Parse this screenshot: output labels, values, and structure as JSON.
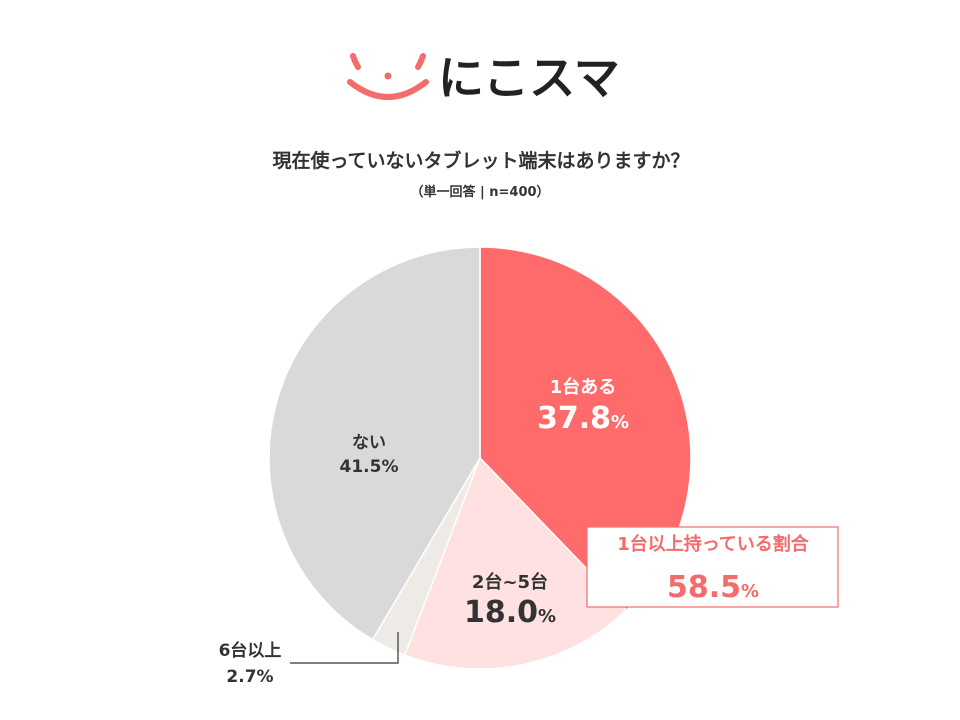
{
  "brand": {
    "name": "にこスマ",
    "icon": "smile-face-icon",
    "accent_color": "#F46B6B",
    "text_color": "#222222"
  },
  "chart_data": {
    "type": "pie",
    "title": "現在使っていないタブレット端末はありますか？",
    "subtitle": "（単一回答 | n=400）",
    "unit": "%",
    "categories": [
      "1台ある",
      "2台~5台",
      "6台以上",
      "ない"
    ],
    "values": [
      37.8,
      18.0,
      2.7,
      41.5
    ],
    "colors": [
      "#FF6B6B",
      "#FFE1E1",
      "#EEEAE5",
      "#D9D9D9"
    ],
    "label_colors": [
      "#FFFFFF",
      "#333333",
      "#333333",
      "#333333"
    ],
    "callout": {
      "label": "1台以上持っている割合",
      "value": 58.5,
      "color": "#F46B6B"
    }
  }
}
